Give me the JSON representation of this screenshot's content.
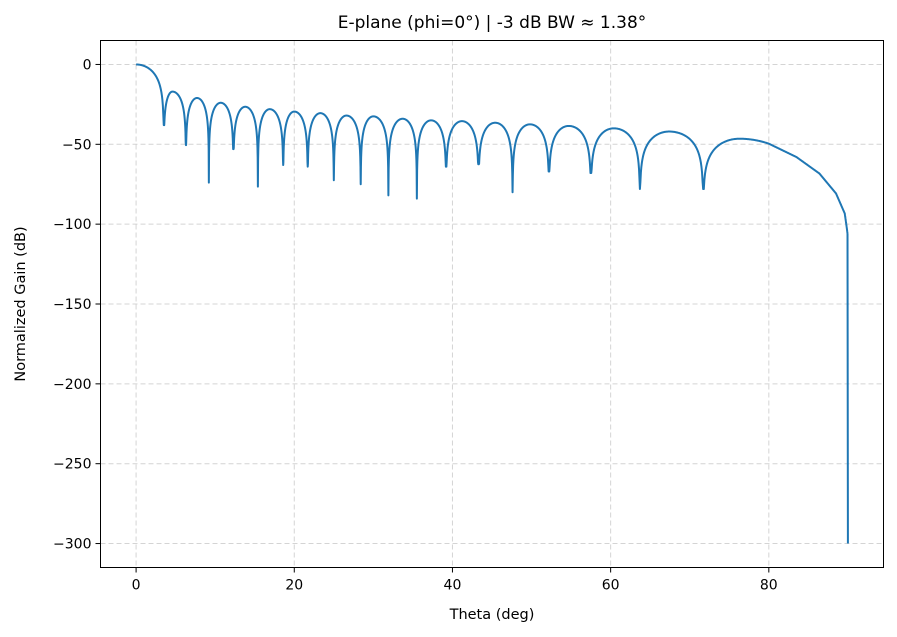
{
  "chart_data": {
    "type": "line",
    "title": "E-plane (phi=0°)  |  -3 dB BW ≈ 1.38°",
    "xlabel": "Theta (deg)",
    "ylabel": "Normalized Gain (dB)",
    "xlim": [
      -4.5,
      94.5
    ],
    "ylim": [
      -315,
      15
    ],
    "xticks": [
      0,
      20,
      40,
      60,
      80
    ],
    "yticks": [
      0,
      -50,
      -100,
      -150,
      -200,
      -250,
      -300
    ],
    "xtick_labels": [
      "0",
      "20",
      "40",
      "60",
      "80"
    ],
    "ytick_labels": [
      "0",
      "−50",
      "−100",
      "−150",
      "−200",
      "−250",
      "−300"
    ],
    "grid": true,
    "line_color": "#1f77b4",
    "series": [
      {
        "points": [
          {
            "x": 0,
            "y": 0,
            "kind": "peak"
          },
          {
            "x": 3.5,
            "y": -38,
            "kind": "null"
          },
          {
            "x": 4.6,
            "y": -17,
            "kind": "peak"
          },
          {
            "x": 6.3,
            "y": -50.5,
            "kind": "null"
          },
          {
            "x": 7.7,
            "y": -21,
            "kind": "peak"
          },
          {
            "x": 9.2,
            "y": -74,
            "kind": "null"
          },
          {
            "x": 10.7,
            "y": -24,
            "kind": "peak"
          },
          {
            "x": 12.3,
            "y": -53,
            "kind": "null"
          },
          {
            "x": 13.8,
            "y": -26.5,
            "kind": "peak"
          },
          {
            "x": 15.4,
            "y": -76.5,
            "kind": "null"
          },
          {
            "x": 16.9,
            "y": -28,
            "kind": "peak"
          },
          {
            "x": 18.6,
            "y": -63,
            "kind": "null"
          },
          {
            "x": 20.0,
            "y": -29.5,
            "kind": "peak"
          },
          {
            "x": 21.7,
            "y": -64,
            "kind": "null"
          },
          {
            "x": 23.3,
            "y": -30.5,
            "kind": "peak"
          },
          {
            "x": 25.0,
            "y": -72.5,
            "kind": "null"
          },
          {
            "x": 26.6,
            "y": -32,
            "kind": "peak"
          },
          {
            "x": 28.4,
            "y": -75,
            "kind": "null"
          },
          {
            "x": 30.0,
            "y": -32.5,
            "kind": "peak"
          },
          {
            "x": 31.9,
            "y": -82,
            "kind": "null"
          },
          {
            "x": 33.7,
            "y": -34,
            "kind": "peak"
          },
          {
            "x": 35.5,
            "y": -84,
            "kind": "null"
          },
          {
            "x": 37.3,
            "y": -35,
            "kind": "peak"
          },
          {
            "x": 39.2,
            "y": -64,
            "kind": "null"
          },
          {
            "x": 41.2,
            "y": -35.5,
            "kind": "peak"
          },
          {
            "x": 43.3,
            "y": -62.5,
            "kind": "null"
          },
          {
            "x": 45.4,
            "y": -36.5,
            "kind": "peak"
          },
          {
            "x": 47.6,
            "y": -80,
            "kind": "null"
          },
          {
            "x": 49.8,
            "y": -37.5,
            "kind": "peak"
          },
          {
            "x": 52.2,
            "y": -67,
            "kind": "null"
          },
          {
            "x": 54.7,
            "y": -38.5,
            "kind": "peak"
          },
          {
            "x": 57.5,
            "y": -68,
            "kind": "null"
          },
          {
            "x": 60.4,
            "y": -40,
            "kind": "peak"
          },
          {
            "x": 63.7,
            "y": -78,
            "kind": "null"
          },
          {
            "x": 67.4,
            "y": -42,
            "kind": "peak"
          },
          {
            "x": 71.7,
            "y": -78,
            "kind": "null"
          },
          {
            "x": 76.3,
            "y": -46.5,
            "kind": "peak"
          },
          {
            "x": 80.0,
            "y": -49.6,
            "kind": "point"
          },
          {
            "x": 83.5,
            "y": -58,
            "kind": "point"
          },
          {
            "x": 86.4,
            "y": -68.3,
            "kind": "point"
          },
          {
            "x": 88.5,
            "y": -80.8,
            "kind": "point"
          },
          {
            "x": 89.6,
            "y": -93.3,
            "kind": "point"
          },
          {
            "x": 89.85,
            "y": -102,
            "kind": "point"
          },
          {
            "x": 89.95,
            "y": -106,
            "kind": "point"
          },
          {
            "x": 90.0,
            "y": -300,
            "kind": "point"
          }
        ]
      }
    ]
  }
}
